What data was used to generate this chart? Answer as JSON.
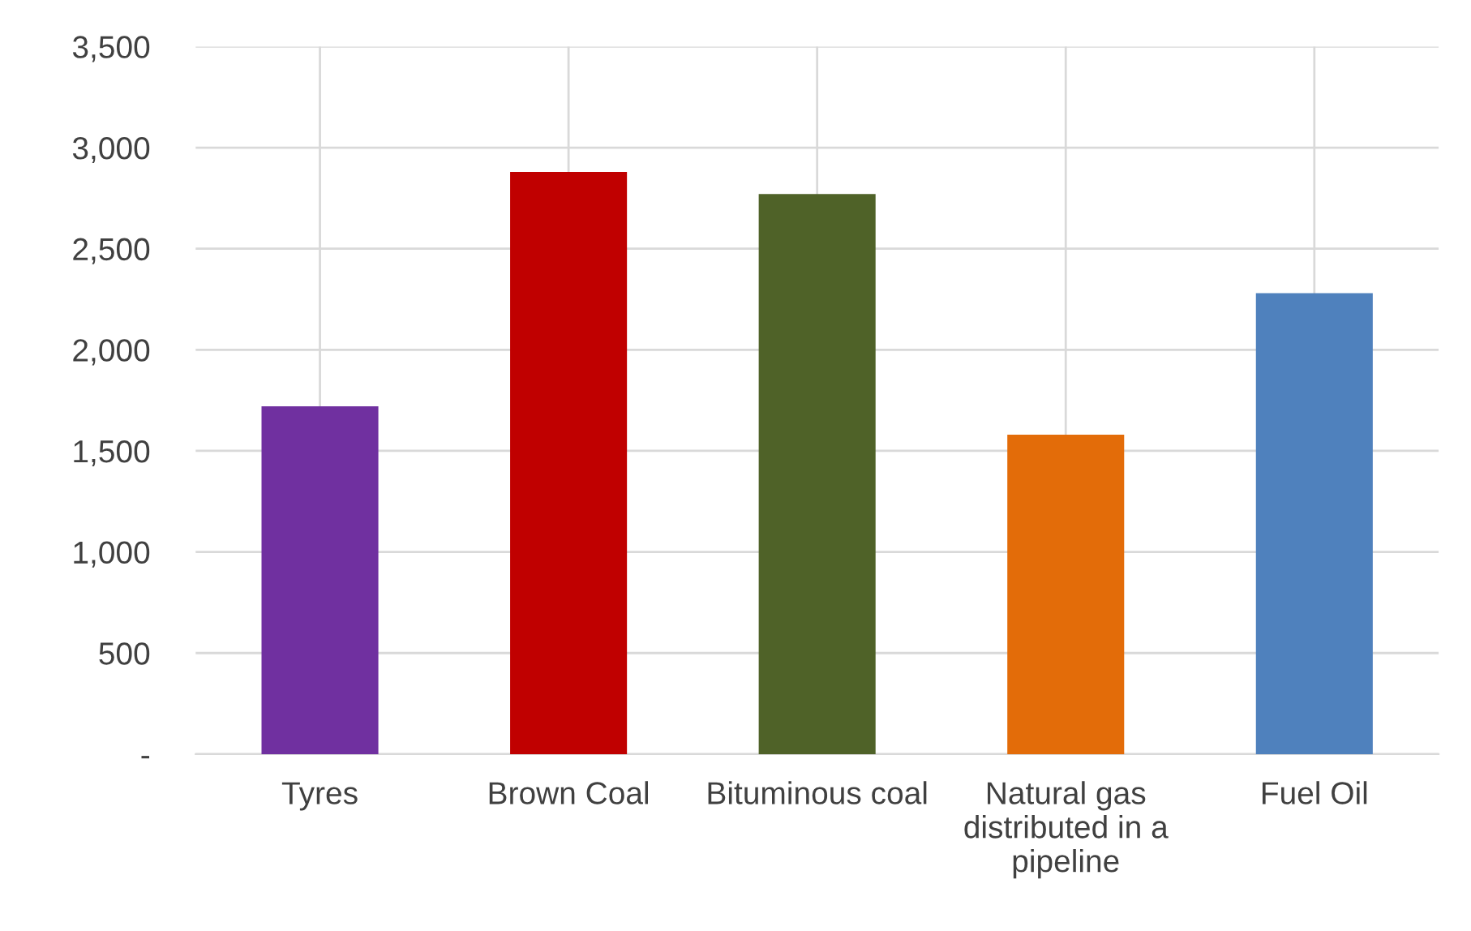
{
  "chart_data": {
    "type": "bar",
    "categories": [
      "Tyres",
      "Brown Coal",
      "Bituminous coal",
      "Natural gas\ndistributed in a\npipeline",
      "Fuel Oil"
    ],
    "values": [
      1720,
      2880,
      2770,
      1580,
      2280
    ],
    "colors": [
      "#7030a0",
      "#c00000",
      "#4f6228",
      "#e36c09",
      "#4f81bd"
    ],
    "ylim": [
      0,
      3500
    ],
    "yticks": [
      {
        "value": 0,
        "label": "-"
      },
      {
        "value": 500,
        "label": "500"
      },
      {
        "value": 1000,
        "label": "1,000"
      },
      {
        "value": 1500,
        "label": "1,500"
      },
      {
        "value": 2000,
        "label": "2,000"
      },
      {
        "value": 2500,
        "label": "2,500"
      },
      {
        "value": 3000,
        "label": "3,000"
      },
      {
        "value": 3500,
        "label": "3,500"
      }
    ],
    "grid": true
  }
}
